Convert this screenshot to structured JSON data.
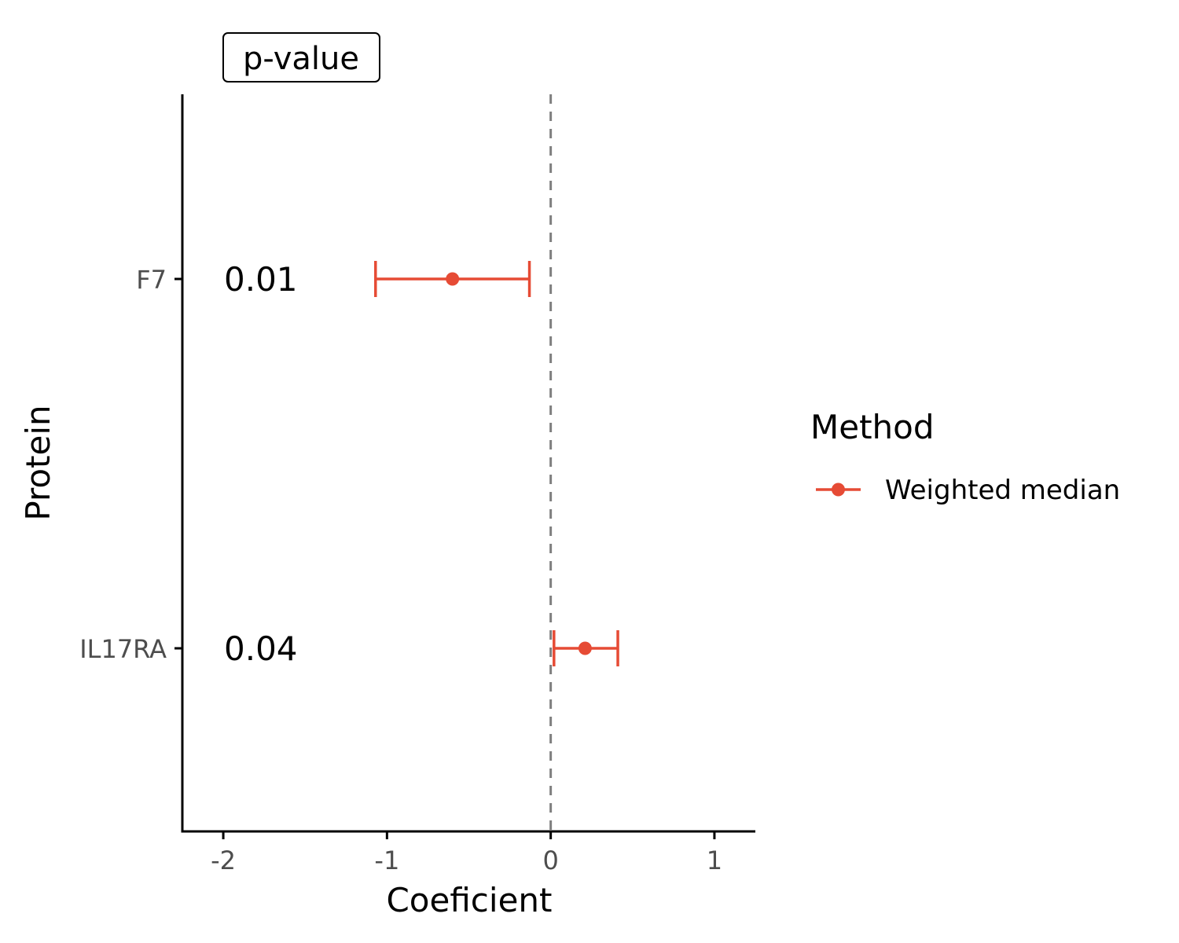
{
  "chart_data": {
    "type": "scatter",
    "subtype": "forest-plot",
    "header_label": "p-value",
    "xlabel": "Coeficient",
    "ylabel": "Protein",
    "xlim": [
      -2.25,
      1.25
    ],
    "x_ticks": [
      -2,
      -1,
      0,
      1
    ],
    "x_tick_labels": [
      "-2",
      "-1",
      "0",
      "1"
    ],
    "reference_line": 0,
    "categories": [
      "F7",
      "IL17RA"
    ],
    "series": [
      {
        "name": "Weighted median",
        "color": "#E64B35",
        "points": [
          {
            "category": "F7",
            "estimate": -0.6,
            "lower": -1.07,
            "upper": -0.13,
            "p_value": "0.01"
          },
          {
            "category": "IL17RA",
            "estimate": 0.21,
            "lower": 0.02,
            "upper": 0.41,
            "p_value": "0.04"
          }
        ]
      }
    ],
    "legend": {
      "title": "Method",
      "position": "right"
    },
    "grid": false
  }
}
